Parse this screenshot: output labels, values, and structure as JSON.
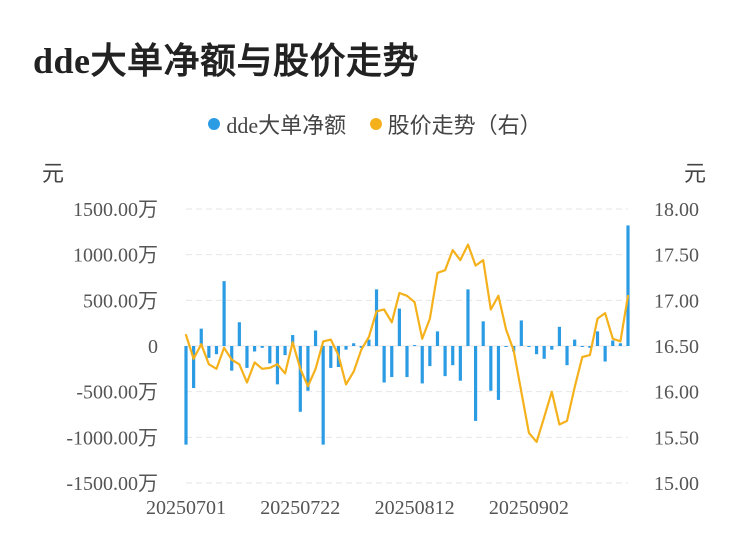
{
  "title": "dde大单净额与股价走势",
  "colors": {
    "bar": "#2b9be3",
    "line": "#f5b11c",
    "grid": "#e6e6e6"
  },
  "chart_data": {
    "type": "bar+line",
    "title": "dde大单净额与股价走势",
    "legend": [
      {
        "name": "dde大单净额",
        "color": "#2b9be3"
      },
      {
        "name": "股价走势（右）",
        "color": "#f5b11c"
      }
    ],
    "left_axis": {
      "unit": "元",
      "ticks": [
        "1500.00万",
        "1000.00万",
        "500.00万",
        "0",
        "-500.00万",
        "-1000.00万",
        "-1500.00万"
      ],
      "range": [
        -1500,
        1500
      ]
    },
    "right_axis": {
      "unit": "元",
      "ticks": [
        "18.00",
        "17.50",
        "17.00",
        "16.50",
        "16.00",
        "15.50",
        "15.00"
      ],
      "range": [
        15.0,
        18.0
      ]
    },
    "x_labels": [
      "20250701",
      "20250722",
      "20250812",
      "20250902"
    ],
    "x_label_positions": [
      0,
      15,
      30,
      45
    ],
    "grid": true,
    "series": [
      {
        "name": "dde大单净额",
        "type": "bar",
        "values": [
          -1080,
          -460,
          190,
          -130,
          -90,
          710,
          -270,
          260,
          -240,
          -60,
          -20,
          -190,
          -420,
          -100,
          120,
          -720,
          -490,
          170,
          -1080,
          -240,
          -230,
          -40,
          30,
          -20,
          70,
          620,
          -400,
          -340,
          410,
          -340,
          10,
          -410,
          -220,
          160,
          -330,
          -210,
          -380,
          620,
          -820,
          270,
          -490,
          -590,
          -10,
          -60,
          280,
          -10,
          -90,
          -140,
          -40,
          210,
          -210,
          70,
          -10,
          -20,
          160,
          -170,
          60,
          30,
          1320
        ]
      },
      {
        "name": "股价走势（右）",
        "type": "line",
        "values": [
          16.62,
          16.36,
          16.52,
          16.3,
          16.25,
          16.48,
          16.35,
          16.3,
          16.1,
          16.32,
          16.25,
          16.26,
          16.3,
          16.2,
          16.54,
          16.25,
          16.06,
          16.25,
          16.55,
          16.57,
          16.4,
          16.08,
          16.22,
          16.46,
          16.6,
          16.88,
          16.9,
          16.76,
          17.08,
          17.05,
          16.98,
          16.58,
          16.8,
          17.3,
          17.33,
          17.55,
          17.44,
          17.61,
          17.38,
          17.44,
          16.9,
          17.05,
          16.68,
          16.45,
          16.0,
          15.55,
          15.45,
          15.72,
          16.0,
          15.64,
          15.68,
          16.05,
          16.38,
          16.4,
          16.8,
          16.86,
          16.58,
          16.55,
          17.05
        ]
      }
    ]
  }
}
